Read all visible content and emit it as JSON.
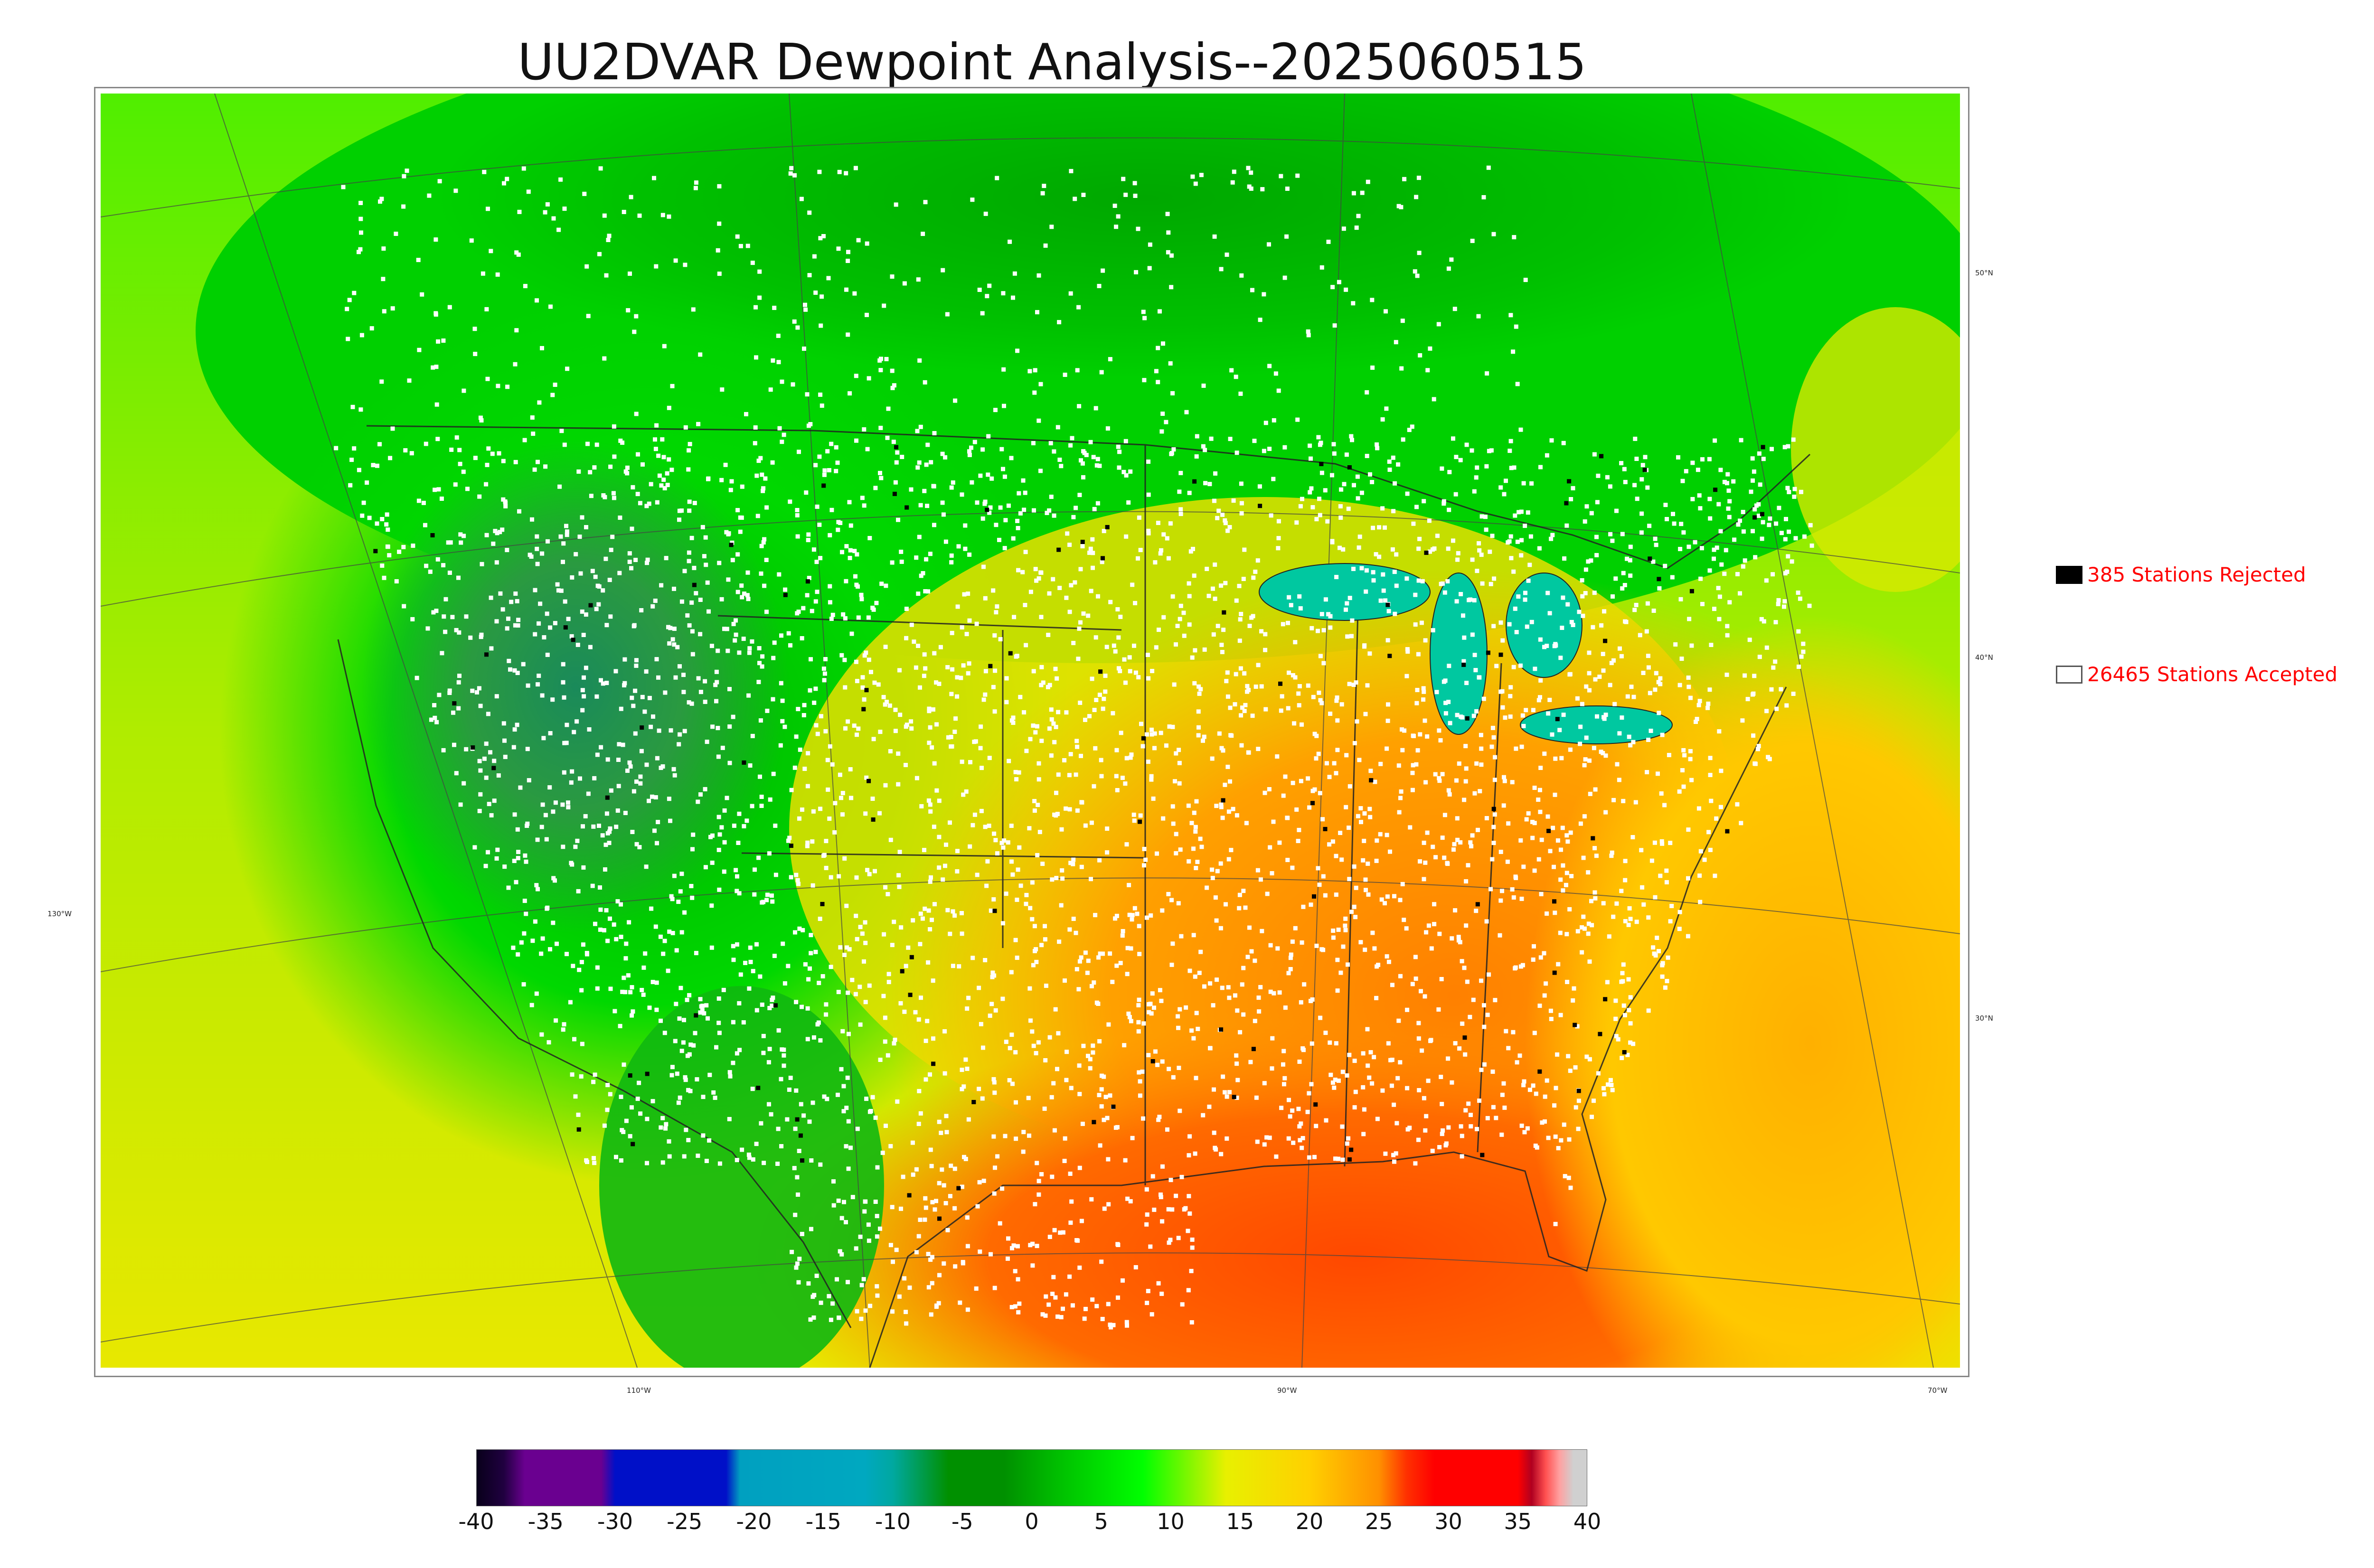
{
  "title": "UU2DVAR Dewpoint Analysis--2025060515",
  "legend": {
    "rejected": {
      "count_label": "385 Stations Rejected",
      "swatch_color": "#000000"
    },
    "accepted": {
      "count_label": "26465 Stations Accepted",
      "swatch_color": "#ffffff"
    }
  },
  "map": {
    "lon_labels": [
      "110°W",
      "90°W",
      "70°W"
    ],
    "lat_labels": [
      "50°N",
      "40°N",
      "30°N",
      "130°W"
    ]
  },
  "colorbar": {
    "ticks": [
      "-40",
      "-35",
      "-30",
      "-25",
      "-20",
      "-15",
      "-10",
      "-5",
      "0",
      "5",
      "10",
      "15",
      "20",
      "25",
      "30",
      "35",
      "40"
    ],
    "range": [
      -40,
      40
    ],
    "colors": [
      {
        "v": -40,
        "c": "#08001a"
      },
      {
        "v": -38,
        "c": "#200040"
      },
      {
        "v": -36.5,
        "c": "#6a0090"
      },
      {
        "v": -31,
        "c": "#6a0090"
      },
      {
        "v": -30,
        "c": "#0010c8"
      },
      {
        "v": -22,
        "c": "#0010c8"
      },
      {
        "v": -21,
        "c": "#00a0c0"
      },
      {
        "v": -12,
        "c": "#00a8c0"
      },
      {
        "v": -10,
        "c": "#00a8a0"
      },
      {
        "v": -6,
        "c": "#009000"
      },
      {
        "v": -2,
        "c": "#009000"
      },
      {
        "v": 2,
        "c": "#00c000"
      },
      {
        "v": 8,
        "c": "#00ff00"
      },
      {
        "v": 14,
        "c": "#e8f000"
      },
      {
        "v": 20,
        "c": "#ffd000"
      },
      {
        "v": 25,
        "c": "#ff9000"
      },
      {
        "v": 27,
        "c": "#ff3000"
      },
      {
        "v": 29,
        "c": "#ff0000"
      },
      {
        "v": 35,
        "c": "#ff0000"
      },
      {
        "v": 36,
        "c": "#b00020"
      },
      {
        "v": 37,
        "c": "#ff5050"
      },
      {
        "v": 38,
        "c": "#ffa0a0"
      },
      {
        "v": 39,
        "c": "#d0d0d0"
      },
      {
        "v": 40,
        "c": "#d0d0d0"
      }
    ]
  }
}
